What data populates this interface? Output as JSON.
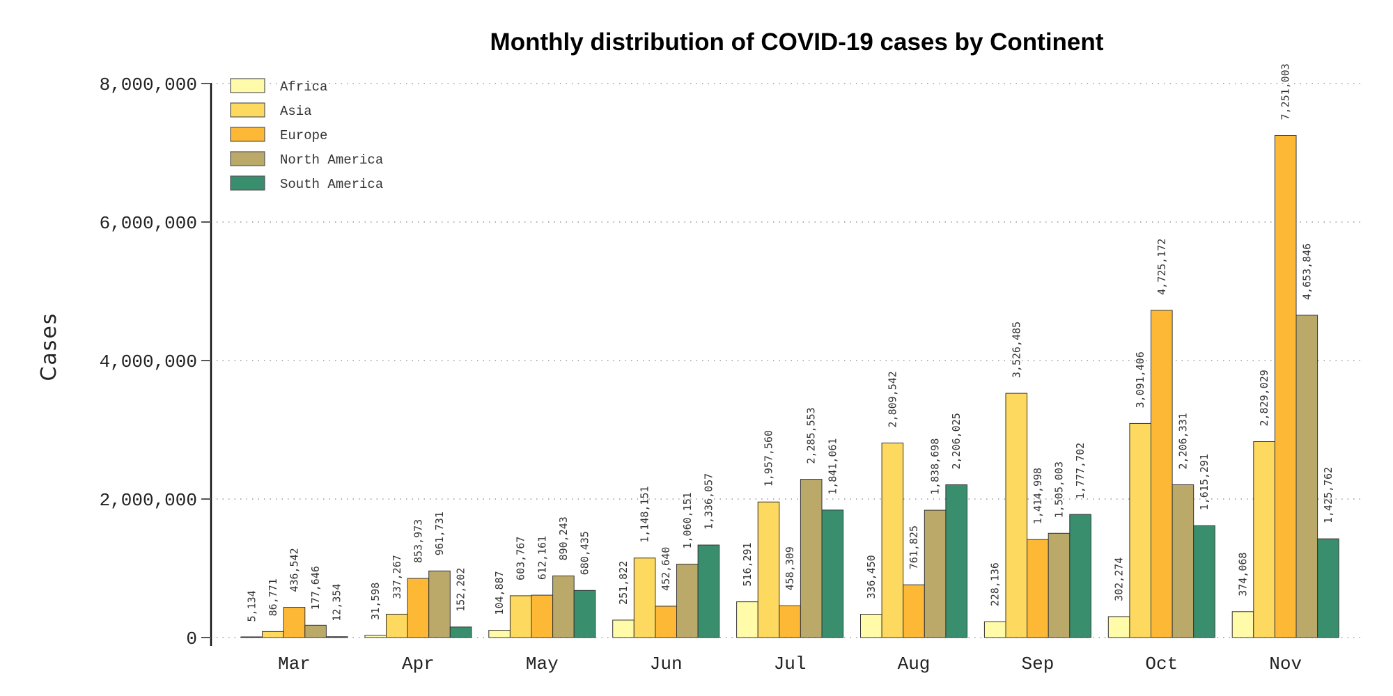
{
  "chart_data": {
    "type": "bar",
    "title": "Monthly distribution of COVID-19 cases by Continent",
    "xlabel": "",
    "ylabel": "Cases",
    "ylim": [
      0,
      8000000
    ],
    "yticks": [
      0,
      2000000,
      4000000,
      6000000,
      8000000
    ],
    "ytick_labels": [
      "0",
      "2,000,000",
      "4,000,000",
      "6,000,000",
      "8,000,000"
    ],
    "grid": true,
    "legend_position": "top-left",
    "categories": [
      "Mar",
      "Apr",
      "May",
      "Jun",
      "Jul",
      "Aug",
      "Sep",
      "Oct",
      "Nov"
    ],
    "series": [
      {
        "name": "Africa",
        "color": "#FFFBA8",
        "values": [
          5134,
          31598,
          104887,
          251822,
          516291,
          336450,
          228136,
          302274,
          374068
        ]
      },
      {
        "name": "Asia",
        "color": "#FED95F",
        "values": [
          86771,
          337267,
          603767,
          1148151,
          1957560,
          2809542,
          3526485,
          3091406,
          2829029
        ]
      },
      {
        "name": "Europe",
        "color": "#FDB935",
        "values": [
          436542,
          853973,
          612161,
          452640,
          458309,
          761825,
          1414998,
          4725172,
          7251003
        ]
      },
      {
        "name": "North America",
        "color": "#BBA96A",
        "values": [
          177646,
          961731,
          890243,
          1060151,
          2285553,
          1838698,
          1505003,
          2206331,
          4653846
        ]
      },
      {
        "name": "South America",
        "color": "#398E6E",
        "values": [
          12354,
          152202,
          680435,
          1336057,
          1841061,
          2206025,
          1777702,
          1615291,
          1425762
        ]
      }
    ]
  }
}
